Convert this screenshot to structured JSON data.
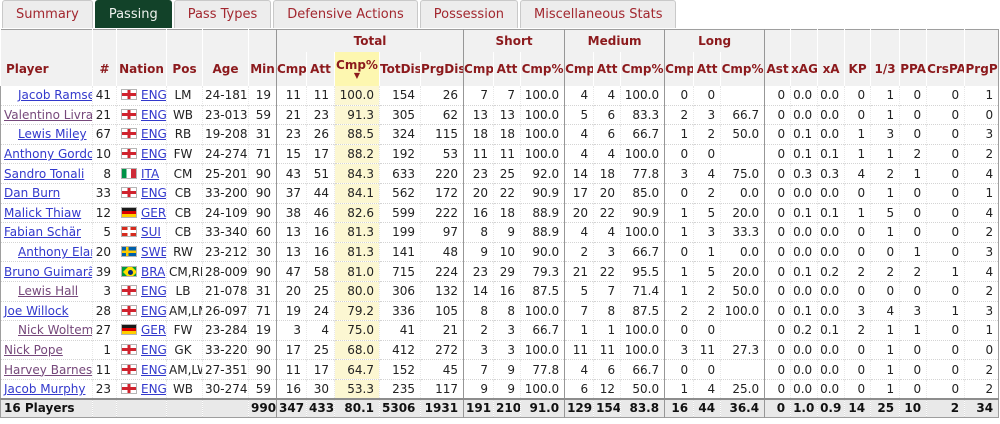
{
  "tabs": [
    {
      "label": "Summary",
      "active": false
    },
    {
      "label": "Passing",
      "active": true
    },
    {
      "label": "Pass Types",
      "active": false
    },
    {
      "label": "Defensive Actions",
      "active": false
    },
    {
      "label": "Possession",
      "active": false
    },
    {
      "label": "Miscellaneous Stats",
      "active": false
    }
  ],
  "table": {
    "col_groups": [
      {
        "label": "",
        "span": 6
      },
      {
        "label": "Total",
        "span": 5
      },
      {
        "label": "Short",
        "span": 3
      },
      {
        "label": "Medium",
        "span": 3
      },
      {
        "label": "Long",
        "span": 3
      },
      {
        "label": "",
        "span": 8
      }
    ],
    "columns": [
      "Player",
      "#",
      "Nation",
      "Pos",
      "Age",
      "Min",
      "Cmp",
      "Att",
      "Cmp%",
      "TotDist",
      "PrgDist",
      "Cmp",
      "Att",
      "Cmp%",
      "Cmp",
      "Att",
      "Cmp%",
      "Cmp",
      "Att",
      "Cmp%",
      "Ast",
      "xAG",
      "xA",
      "KP",
      "1/3",
      "PPA",
      "CrsPA",
      "PrgP"
    ],
    "sort": {
      "group": "Total",
      "column": "Cmp%",
      "direction": "desc",
      "arrow": "▼"
    },
    "players": [
      {
        "name": "Jacob Ramsey",
        "shirt": "41",
        "nation": "ENG",
        "pos": "LM",
        "age": "24-181",
        "min": "19",
        "sub": true,
        "visited": false,
        "stats": [
          "11",
          "11",
          "100.0",
          "154",
          "26",
          "7",
          "7",
          "100.0",
          "4",
          "4",
          "100.0",
          "0",
          "0",
          "",
          "0",
          "0.0",
          "0.0",
          "0",
          "1",
          "0",
          "0",
          "1"
        ]
      },
      {
        "name": "Valentino Livramento",
        "shirt": "21",
        "nation": "ENG",
        "pos": "WB",
        "age": "23-013",
        "min": "59",
        "sub": false,
        "visited": true,
        "stats": [
          "21",
          "23",
          "91.3",
          "305",
          "62",
          "13",
          "13",
          "100.0",
          "5",
          "6",
          "83.3",
          "2",
          "3",
          "66.7",
          "0",
          "0.0",
          "0.0",
          "0",
          "1",
          "0",
          "0",
          "0"
        ]
      },
      {
        "name": "Lewis Miley",
        "shirt": "67",
        "nation": "ENG",
        "pos": "RB",
        "age": "19-208",
        "min": "31",
        "sub": true,
        "visited": false,
        "stats": [
          "23",
          "26",
          "88.5",
          "324",
          "115",
          "18",
          "18",
          "100.0",
          "4",
          "6",
          "66.7",
          "1",
          "2",
          "50.0",
          "0",
          "0.1",
          "0.0",
          "1",
          "3",
          "0",
          "0",
          "3"
        ]
      },
      {
        "name": "Anthony Gordon",
        "shirt": "10",
        "nation": "ENG",
        "pos": "FW",
        "age": "24-274",
        "min": "71",
        "sub": false,
        "visited": false,
        "stats": [
          "15",
          "17",
          "88.2",
          "192",
          "53",
          "11",
          "11",
          "100.0",
          "4",
          "4",
          "100.0",
          "0",
          "0",
          "",
          "0",
          "0.1",
          "0.1",
          "1",
          "1",
          "2",
          "0",
          "2"
        ]
      },
      {
        "name": "Sandro Tonali",
        "shirt": "8",
        "nation": "ITA",
        "pos": "CM",
        "age": "25-201",
        "min": "90",
        "sub": false,
        "visited": false,
        "stats": [
          "43",
          "51",
          "84.3",
          "633",
          "220",
          "23",
          "25",
          "92.0",
          "14",
          "18",
          "77.8",
          "3",
          "4",
          "75.0",
          "0",
          "0.3",
          "0.3",
          "4",
          "2",
          "1",
          "0",
          "4"
        ]
      },
      {
        "name": "Dan Burn",
        "shirt": "33",
        "nation": "ENG",
        "pos": "CB",
        "age": "33-200",
        "min": "90",
        "sub": false,
        "visited": false,
        "stats": [
          "37",
          "44",
          "84.1",
          "562",
          "172",
          "20",
          "22",
          "90.9",
          "17",
          "20",
          "85.0",
          "0",
          "2",
          "0.0",
          "0",
          "0.0",
          "0.0",
          "0",
          "1",
          "0",
          "0",
          "1"
        ]
      },
      {
        "name": "Malick Thiaw",
        "shirt": "12",
        "nation": "GER",
        "pos": "CB",
        "age": "24-109",
        "min": "90",
        "sub": false,
        "visited": false,
        "stats": [
          "38",
          "46",
          "82.6",
          "599",
          "222",
          "16",
          "18",
          "88.9",
          "20",
          "22",
          "90.9",
          "1",
          "5",
          "20.0",
          "0",
          "0.1",
          "0.1",
          "1",
          "5",
          "0",
          "0",
          "4"
        ]
      },
      {
        "name": "Fabian Schär",
        "shirt": "5",
        "nation": "SUI",
        "pos": "CB",
        "age": "33-340",
        "min": "60",
        "sub": false,
        "visited": false,
        "stats": [
          "13",
          "16",
          "81.3",
          "199",
          "97",
          "8",
          "9",
          "88.9",
          "4",
          "4",
          "100.0",
          "1",
          "3",
          "33.3",
          "0",
          "0.0",
          "0.0",
          "0",
          "1",
          "0",
          "0",
          "2"
        ]
      },
      {
        "name": "Anthony Elanga",
        "shirt": "20",
        "nation": "SWE",
        "pos": "RW",
        "age": "23-212",
        "min": "30",
        "sub": true,
        "visited": false,
        "stats": [
          "13",
          "16",
          "81.3",
          "141",
          "48",
          "9",
          "10",
          "90.0",
          "2",
          "3",
          "66.7",
          "0",
          "1",
          "0.0",
          "0",
          "0.0",
          "0.0",
          "0",
          "0",
          "1",
          "0",
          "3"
        ]
      },
      {
        "name": "Bruno Guimarães",
        "shirt": "39",
        "nation": "BRA",
        "pos": "CM,RM",
        "age": "28-009",
        "min": "90",
        "sub": false,
        "visited": false,
        "stats": [
          "47",
          "58",
          "81.0",
          "715",
          "224",
          "23",
          "29",
          "79.3",
          "21",
          "22",
          "95.5",
          "1",
          "5",
          "20.0",
          "0",
          "0.1",
          "0.2",
          "2",
          "2",
          "2",
          "1",
          "4"
        ]
      },
      {
        "name": "Lewis Hall",
        "shirt": "3",
        "nation": "ENG",
        "pos": "LB",
        "age": "21-078",
        "min": "31",
        "sub": true,
        "visited": true,
        "stats": [
          "20",
          "25",
          "80.0",
          "306",
          "132",
          "14",
          "16",
          "87.5",
          "5",
          "7",
          "71.4",
          "1",
          "2",
          "50.0",
          "0",
          "0.0",
          "0.0",
          "0",
          "0",
          "0",
          "0",
          "2"
        ]
      },
      {
        "name": "Joe Willock",
        "shirt": "28",
        "nation": "ENG",
        "pos": "AM,LM",
        "age": "26-097",
        "min": "71",
        "sub": false,
        "visited": false,
        "stats": [
          "19",
          "24",
          "79.2",
          "336",
          "105",
          "8",
          "8",
          "100.0",
          "7",
          "8",
          "87.5",
          "2",
          "2",
          "100.0",
          "0",
          "0.1",
          "0.0",
          "3",
          "4",
          "3",
          "1",
          "3"
        ]
      },
      {
        "name": "Nick Woltemade",
        "shirt": "27",
        "nation": "GER",
        "pos": "FW",
        "age": "23-284",
        "min": "19",
        "sub": true,
        "visited": true,
        "stats": [
          "3",
          "4",
          "75.0",
          "41",
          "21",
          "2",
          "3",
          "66.7",
          "1",
          "1",
          "100.0",
          "0",
          "0",
          "",
          "0",
          "0.2",
          "0.1",
          "2",
          "1",
          "1",
          "0",
          "1"
        ]
      },
      {
        "name": "Nick Pope",
        "shirt": "1",
        "nation": "ENG",
        "pos": "GK",
        "age": "33-220",
        "min": "90",
        "sub": false,
        "visited": true,
        "stats": [
          "17",
          "25",
          "68.0",
          "412",
          "272",
          "3",
          "3",
          "100.0",
          "11",
          "11",
          "100.0",
          "3",
          "11",
          "27.3",
          "0",
          "0.0",
          "0.0",
          "0",
          "1",
          "0",
          "0",
          "0"
        ]
      },
      {
        "name": "Harvey Barnes",
        "shirt": "11",
        "nation": "ENG",
        "pos": "AM,LW",
        "age": "27-351",
        "min": "90",
        "sub": false,
        "visited": true,
        "stats": [
          "11",
          "17",
          "64.7",
          "152",
          "45",
          "7",
          "9",
          "77.8",
          "4",
          "6",
          "66.7",
          "0",
          "0",
          "",
          "0",
          "0.0",
          "0.0",
          "0",
          "1",
          "0",
          "0",
          "2"
        ]
      },
      {
        "name": "Jacob Murphy",
        "shirt": "23",
        "nation": "ENG",
        "pos": "WB",
        "age": "30-274",
        "min": "59",
        "sub": false,
        "visited": false,
        "stats": [
          "16",
          "30",
          "53.3",
          "235",
          "117",
          "9",
          "9",
          "100.0",
          "6",
          "12",
          "50.0",
          "1",
          "4",
          "25.0",
          "0",
          "0.0",
          "0.0",
          "0",
          "1",
          "0",
          "0",
          "2"
        ]
      }
    ],
    "footer": {
      "label": "16 Players",
      "min": "990",
      "stats": [
        "347",
        "433",
        "80.1",
        "5306",
        "1931",
        "191",
        "210",
        "91.0",
        "129",
        "154",
        "83.8",
        "16",
        "44",
        "36.4",
        "0",
        "1.0",
        "0.9",
        "14",
        "25",
        "10",
        "2",
        "34"
      ]
    }
  },
  "colors": {
    "accent_green": "#124229",
    "tab_red": "#a2272f",
    "header_red": "#8c1a1d",
    "link_blue": "#3339cc",
    "link_visited": "#76487b",
    "highlight_yellow_header": "#fdf7b0",
    "highlight_yellow_cell": "#fcf7d2"
  }
}
